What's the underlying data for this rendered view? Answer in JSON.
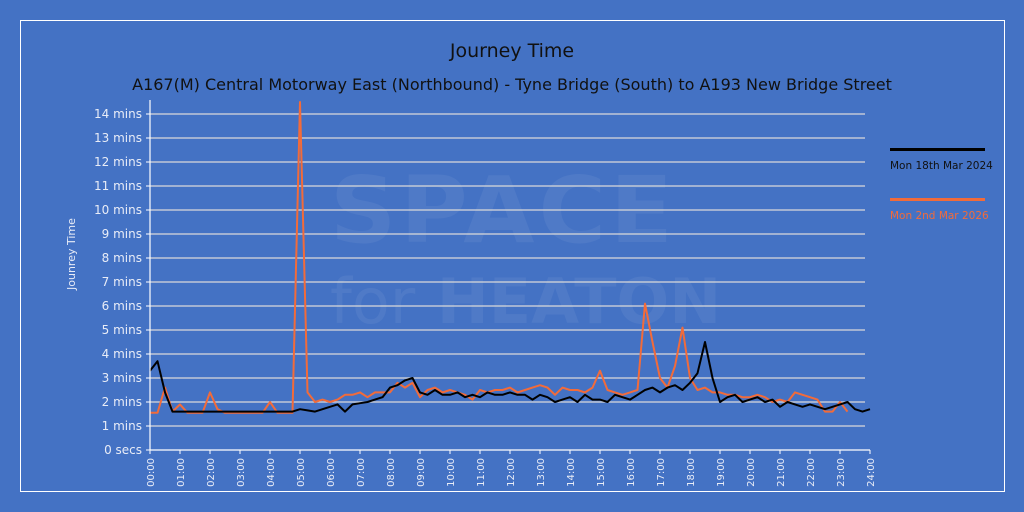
{
  "chart_data": {
    "type": "line",
    "title": "Journey Time",
    "subtitle": "A167(M) Central Motorway East (Northbound) - Tyne Bridge (South) to A193 New Bridge Street",
    "xlabel": "",
    "ylabel": "Jounrey Time",
    "y_unit": "minutes",
    "ylim": [
      0,
      14.5
    ],
    "grid": true,
    "legend_position": "right",
    "y_ticks": [
      "0 secs",
      "1 mins",
      "2 mins",
      "3 mins",
      "4 mins",
      "5 mins",
      "6 mins",
      "7 mins",
      "8 mins",
      "9 mins",
      "10 mins",
      "11 mins",
      "12 mins",
      "13 mins",
      "14 mins"
    ],
    "x_ticks": [
      "00:00",
      "01:00",
      "02:00",
      "03:00",
      "04:00",
      "05:00",
      "06:00",
      "07:00",
      "08:00",
      "09:00",
      "10:00",
      "11:00",
      "12:00",
      "13:00",
      "14:00",
      "15:00",
      "16:00",
      "17:00",
      "18:00",
      "19:00",
      "20:00",
      "21:00",
      "22:00",
      "23:00",
      "24:00"
    ],
    "x_step_hours": 0.25,
    "series": [
      {
        "name": "Mon 18th Mar 2024",
        "color": "#000000",
        "start_hour": 0,
        "values": [
          3.3,
          3.7,
          2.4,
          1.6,
          1.6,
          1.6,
          1.6,
          1.6,
          1.6,
          1.6,
          1.6,
          1.6,
          1.6,
          1.6,
          1.6,
          1.6,
          1.6,
          1.6,
          1.6,
          1.6,
          1.7,
          1.65,
          1.6,
          1.7,
          1.8,
          1.9,
          1.6,
          1.9,
          1.95,
          2.0,
          2.1,
          2.2,
          2.6,
          2.7,
          2.9,
          3.0,
          2.4,
          2.3,
          2.5,
          2.3,
          2.3,
          2.4,
          2.2,
          2.3,
          2.2,
          2.4,
          2.3,
          2.3,
          2.4,
          2.3,
          2.3,
          2.1,
          2.3,
          2.2,
          2.0,
          2.1,
          2.2,
          2.0,
          2.3,
          2.1,
          2.1,
          2.0,
          2.3,
          2.2,
          2.1,
          2.3,
          2.5,
          2.6,
          2.4,
          2.6,
          2.7,
          2.5,
          2.8,
          3.2,
          4.5,
          3.0,
          2.0,
          2.2,
          2.3,
          2.0,
          2.1,
          2.2,
          2.0,
          2.1,
          1.8,
          2.0,
          1.9,
          1.8,
          1.9,
          1.8,
          1.7,
          1.8,
          1.9,
          2.0,
          1.7,
          1.6,
          1.7
        ],
        "end_hour": 24
      },
      {
        "name": "Mon 2nd Mar 2026",
        "color": "#f26b3a",
        "start_hour": 0,
        "values": [
          1.55,
          1.55,
          2.6,
          1.6,
          1.9,
          1.55,
          1.55,
          1.55,
          2.4,
          1.7,
          1.55,
          1.55,
          1.55,
          1.55,
          1.55,
          1.55,
          2.0,
          1.55,
          1.55,
          1.55,
          14.5,
          2.4,
          2.0,
          2.1,
          2.0,
          2.1,
          2.3,
          2.3,
          2.4,
          2.2,
          2.4,
          2.4,
          2.4,
          2.8,
          2.6,
          2.8,
          2.2,
          2.5,
          2.6,
          2.4,
          2.5,
          2.4,
          2.3,
          2.1,
          2.5,
          2.4,
          2.5,
          2.5,
          2.6,
          2.4,
          2.5,
          2.6,
          2.7,
          2.6,
          2.3,
          2.6,
          2.5,
          2.5,
          2.4,
          2.6,
          3.3,
          2.5,
          2.4,
          2.3,
          2.4,
          2.5,
          6.1,
          4.5,
          3.0,
          2.6,
          3.5,
          5.1,
          3.0,
          2.5,
          2.6,
          2.4,
          2.4,
          2.3,
          2.3,
          2.2,
          2.2,
          2.3,
          2.2,
          2.0,
          2.1,
          2.0,
          2.4,
          2.3,
          2.2,
          2.1,
          1.6,
          1.6,
          2.0,
          1.6,
          null,
          null,
          null
        ],
        "end_hour": 24
      }
    ]
  },
  "legend": {
    "items": [
      {
        "label": "Mon 18th Mar 2024",
        "color": "#000000"
      },
      {
        "label": "Mon 2nd Mar 2026",
        "color": "#f26b3a"
      }
    ]
  },
  "watermark": {
    "line1": "SPACE",
    "line2_small": "for",
    "line2_big": "HEATON"
  },
  "colors": {
    "background": "#4472c4",
    "gridline": "#d9d9d9",
    "axis_text": "#e8ecf7"
  }
}
